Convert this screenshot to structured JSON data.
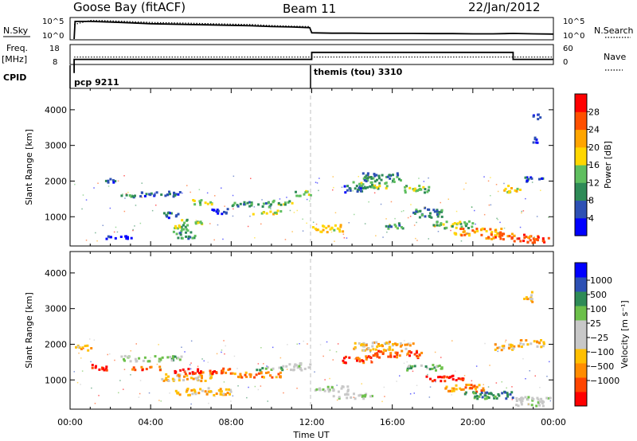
{
  "header": {
    "station": "Goose Bay (fitACF)",
    "beam": "Beam 11",
    "date": "22/Jan/2012"
  },
  "colors": {
    "power_scale": [
      "#0000ff",
      "#2d50b4",
      "#2e8b57",
      "#5fbf5f",
      "#ffd700",
      "#ffa500",
      "#ff5000",
      "#ff0000"
    ],
    "velocity_scale": [
      "#ff0000",
      "#ff4500",
      "#ff8c00",
      "#ffbf00",
      "#c8c8c8",
      "#c8c8c8",
      "#6cc04a",
      "#2e8b57",
      "#2d50b4",
      "#0000ff"
    ],
    "frame": "#000000",
    "divider": "#bbbbbb"
  },
  "chart_data": [
    {
      "type": "line",
      "panel": "noise",
      "left_label": "N.Sky",
      "right_label": "N.Search",
      "left_ticks": [
        "10^5",
        "10^0"
      ],
      "right_ticks": [
        "10^5",
        "10^0"
      ],
      "series": [
        {
          "name": "N.Sky",
          "style": "solid",
          "x": [
            0.2,
            0.25,
            1,
            2,
            3,
            4,
            5,
            6,
            7,
            8,
            9,
            10,
            11,
            11.9,
            12,
            13,
            14,
            15,
            16,
            17,
            18,
            19,
            20,
            21,
            22,
            23,
            24
          ],
          "y": [
            0.0,
            0.85,
            0.85,
            0.82,
            0.78,
            0.74,
            0.72,
            0.7,
            0.68,
            0.66,
            0.64,
            0.6,
            0.58,
            0.55,
            0.3,
            0.28,
            0.28,
            0.27,
            0.27,
            0.27,
            0.26,
            0.26,
            0.25,
            0.25,
            0.27,
            0.25,
            0.24
          ]
        },
        {
          "name": "N.Search",
          "style": "dotted",
          "x": [
            0.2,
            1,
            2,
            3,
            4,
            5,
            6,
            7,
            8,
            9,
            10,
            11,
            11.9
          ],
          "y": [
            0.7,
            0.9,
            0.88,
            0.84,
            0.8,
            0.78,
            0.76,
            0.74,
            0.72,
            0.7,
            0.65,
            0.62,
            0.6
          ]
        }
      ]
    },
    {
      "type": "line",
      "panel": "frequency",
      "left_label": "Freq.",
      "left_unit": "[MHz]",
      "right_label": "Nave",
      "left_ticks": [
        "18",
        "8"
      ],
      "right_ticks": [
        "60",
        "0"
      ],
      "series": [
        {
          "name": "Freq.",
          "style": "solid",
          "x": [
            0.2,
            0.2,
            12,
            12,
            22,
            22,
            24
          ],
          "y": [
            0,
            9.6,
            9.6,
            14.5,
            14.5,
            9.6,
            9.6
          ]
        },
        {
          "name": "Nave",
          "style": "dotted",
          "x": [
            0.2,
            24
          ],
          "y": [
            11.2,
            11.2
          ]
        }
      ]
    },
    {
      "type": "table",
      "panel": "cpid",
      "label": "CPID",
      "segments": [
        {
          "start": 0.2,
          "text": "pcp 9211"
        },
        {
          "start": 12,
          "text": "themis (tou) 3310"
        }
      ]
    },
    {
      "type": "heatmap",
      "panel": "power",
      "ylabel": "Slant Range [km]",
      "yticks": [
        1000,
        2000,
        3000,
        4000
      ],
      "ylim": [
        180,
        4600
      ],
      "xlim": [
        0,
        24
      ],
      "colorbar": {
        "label": "Power [dB]",
        "ticks": [
          "4",
          "8",
          "12",
          "16",
          "20",
          "24",
          "28"
        ]
      },
      "regions": [
        {
          "x": [
            1.5,
            3
          ],
          "y": [
            400,
            500
          ],
          "level": 1
        },
        {
          "x": [
            1.6,
            2.2
          ],
          "y": [
            1950,
            2100
          ],
          "level": 2
        },
        {
          "x": [
            2.5,
            3.5
          ],
          "y": [
            1550,
            1650
          ],
          "level": 3
        },
        {
          "x": [
            3.5,
            5.5
          ],
          "y": [
            1600,
            1750
          ],
          "level": 2
        },
        {
          "x": [
            4.5,
            5.5
          ],
          "y": [
            1000,
            1150
          ],
          "level": 2
        },
        {
          "x": [
            4.8,
            5.8
          ],
          "y": [
            600,
            800
          ],
          "level": 4
        },
        {
          "x": [
            5.2,
            6.2
          ],
          "y": [
            400,
            600
          ],
          "level": 3
        },
        {
          "x": [
            5.5,
            6.5
          ],
          "y": [
            800,
            950
          ],
          "level": 4
        },
        {
          "x": [
            6,
            7
          ],
          "y": [
            1350,
            1500
          ],
          "level": 4
        },
        {
          "x": [
            7,
            8
          ],
          "y": [
            1100,
            1250
          ],
          "level": 2
        },
        {
          "x": [
            8,
            10
          ],
          "y": [
            1300,
            1450
          ],
          "level": 3
        },
        {
          "x": [
            9,
            10.5
          ],
          "y": [
            1100,
            1200
          ],
          "level": 5
        },
        {
          "x": [
            10,
            11
          ],
          "y": [
            1350,
            1500
          ],
          "level": 4
        },
        {
          "x": [
            11,
            11.9
          ],
          "y": [
            1600,
            1750
          ],
          "level": 4
        },
        {
          "x": [
            12,
            13.5
          ],
          "y": [
            600,
            800
          ],
          "level": 5
        },
        {
          "x": [
            13.5,
            14.5
          ],
          "y": [
            1700,
            1900
          ],
          "level": 2
        },
        {
          "x": [
            14,
            15.8
          ],
          "y": [
            1800,
            2000
          ],
          "level": 4
        },
        {
          "x": [
            14.5,
            16.5
          ],
          "y": [
            2000,
            2250
          ],
          "level": 3
        },
        {
          "x": [
            15.5,
            16.5
          ],
          "y": [
            700,
            850
          ],
          "level": 3
        },
        {
          "x": [
            16.5,
            17.8
          ],
          "y": [
            1700,
            1900
          ],
          "level": 4
        },
        {
          "x": [
            17,
            18.5
          ],
          "y": [
            1000,
            1300
          ],
          "level": 3
        },
        {
          "x": [
            18,
            20
          ],
          "y": [
            700,
            900
          ],
          "level": 4
        },
        {
          "x": [
            19,
            21.5
          ],
          "y": [
            500,
            700
          ],
          "level": 6
        },
        {
          "x": [
            20.5,
            22.5
          ],
          "y": [
            400,
            550
          ],
          "level": 7
        },
        {
          "x": [
            21.5,
            22.3
          ],
          "y": [
            1700,
            1900
          ],
          "level": 5
        },
        {
          "x": [
            22,
            23.8
          ],
          "y": [
            300,
            500
          ],
          "level": 7
        },
        {
          "x": [
            22.5,
            23.5
          ],
          "y": [
            2000,
            2150
          ],
          "level": 2
        },
        {
          "x": [
            22.8,
            23.2
          ],
          "y": [
            3100,
            3250
          ],
          "level": 2
        },
        {
          "x": [
            22.9,
            23.3
          ],
          "y": [
            3700,
            3900
          ],
          "level": 1
        }
      ]
    },
    {
      "type": "heatmap",
      "panel": "velocity",
      "ylabel": "Slant Range [km]",
      "xlabel": "Time UT",
      "yticks": [
        1000,
        2000,
        3000,
        4000
      ],
      "ylim": [
        180,
        4600
      ],
      "xlim": [
        0,
        24
      ],
      "xticks": [
        "00:00",
        "04:00",
        "08:00",
        "12:00",
        "16:00",
        "20:00",
        "00:00"
      ],
      "colorbar": {
        "label": "Velocity [m s⁻¹]",
        "ticks": [
          "1000",
          "500",
          "100",
          "25",
          "−25",
          "−100",
          "−500",
          "−1000"
        ]
      },
      "regions": [
        {
          "x": [
            0.2,
            1
          ],
          "y": [
            1850,
            2000
          ],
          "level": 4
        },
        {
          "x": [
            1,
            2
          ],
          "y": [
            1300,
            1450
          ],
          "level": 1
        },
        {
          "x": [
            2.5,
            3.5
          ],
          "y": [
            1550,
            1700
          ],
          "level": 6
        },
        {
          "x": [
            3,
            4.5
          ],
          "y": [
            1300,
            1400
          ],
          "level": 2
        },
        {
          "x": [
            3.5,
            5.5
          ],
          "y": [
            1550,
            1700
          ],
          "level": 7
        },
        {
          "x": [
            4.5,
            7
          ],
          "y": [
            1000,
            1200
          ],
          "level": 4
        },
        {
          "x": [
            5,
            8
          ],
          "y": [
            600,
            800
          ],
          "level": 4
        },
        {
          "x": [
            5,
            6.5
          ],
          "y": [
            1200,
            1350
          ],
          "level": 1
        },
        {
          "x": [
            6.5,
            8
          ],
          "y": [
            1200,
            1350
          ],
          "level": 2
        },
        {
          "x": [
            8,
            10.5
          ],
          "y": [
            1100,
            1250
          ],
          "level": 3
        },
        {
          "x": [
            9,
            10.5
          ],
          "y": [
            1300,
            1400
          ],
          "level": 7
        },
        {
          "x": [
            10.5,
            11.9
          ],
          "y": [
            1300,
            1500
          ],
          "level": 6
        },
        {
          "x": [
            12,
            14
          ],
          "y": [
            700,
            850
          ],
          "level": 6
        },
        {
          "x": [
            13,
            15
          ],
          "y": [
            500,
            650
          ],
          "level": 6
        },
        {
          "x": [
            13.5,
            15
          ],
          "y": [
            1500,
            1700
          ],
          "level": 2
        },
        {
          "x": [
            14,
            17
          ],
          "y": [
            1850,
            2100
          ],
          "level": 4
        },
        {
          "x": [
            15,
            17.5
          ],
          "y": [
            1650,
            1850
          ],
          "level": 2
        },
        {
          "x": [
            16.5,
            18.5
          ],
          "y": [
            1300,
            1450
          ],
          "level": 7
        },
        {
          "x": [
            17.5,
            19.5
          ],
          "y": [
            1000,
            1150
          ],
          "level": 1
        },
        {
          "x": [
            18.5,
            20.5
          ],
          "y": [
            700,
            900
          ],
          "level": 3
        },
        {
          "x": [
            19.5,
            22
          ],
          "y": [
            500,
            700
          ],
          "level": 8
        },
        {
          "x": [
            21,
            22.3
          ],
          "y": [
            1850,
            2050
          ],
          "level": 4
        },
        {
          "x": [
            22,
            23.8
          ],
          "y": [
            300,
            550
          ],
          "level": 6
        },
        {
          "x": [
            22.3,
            23.5
          ],
          "y": [
            1950,
            2150
          ],
          "level": 4
        },
        {
          "x": [
            22.5,
            23
          ],
          "y": [
            3200,
            3500
          ],
          "level": 4
        }
      ]
    }
  ]
}
